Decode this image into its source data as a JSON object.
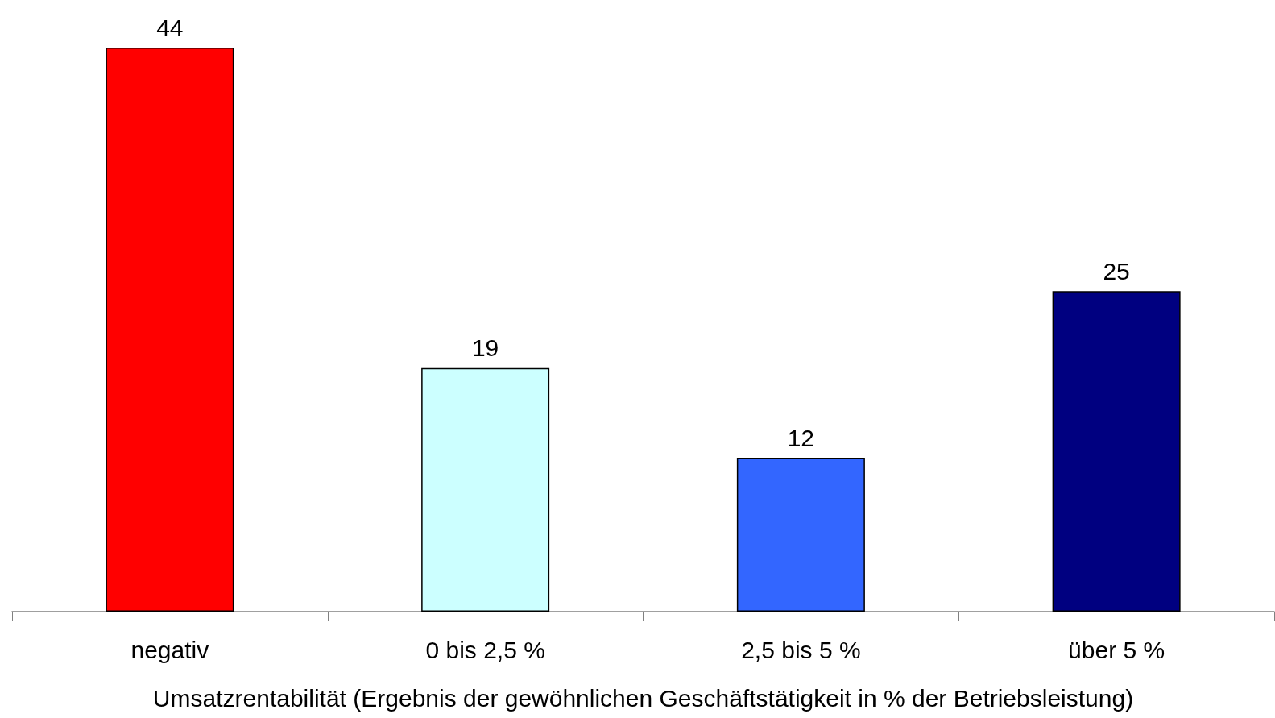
{
  "chart_data": {
    "type": "bar",
    "xlabel": "Umsatzrentabilität (Ergebnis der gewöhnlichen Geschäftstätigkeit in % der Betriebsleistung)",
    "categories": [
      "negativ",
      "0 bis 2,5 %",
      "2,5 bis 5 %",
      "über 5 %"
    ],
    "values": [
      44,
      19,
      12,
      25
    ],
    "colors": [
      "#ff0000",
      "#ccffff",
      "#3366ff",
      "#000080"
    ],
    "data_labels": true
  }
}
